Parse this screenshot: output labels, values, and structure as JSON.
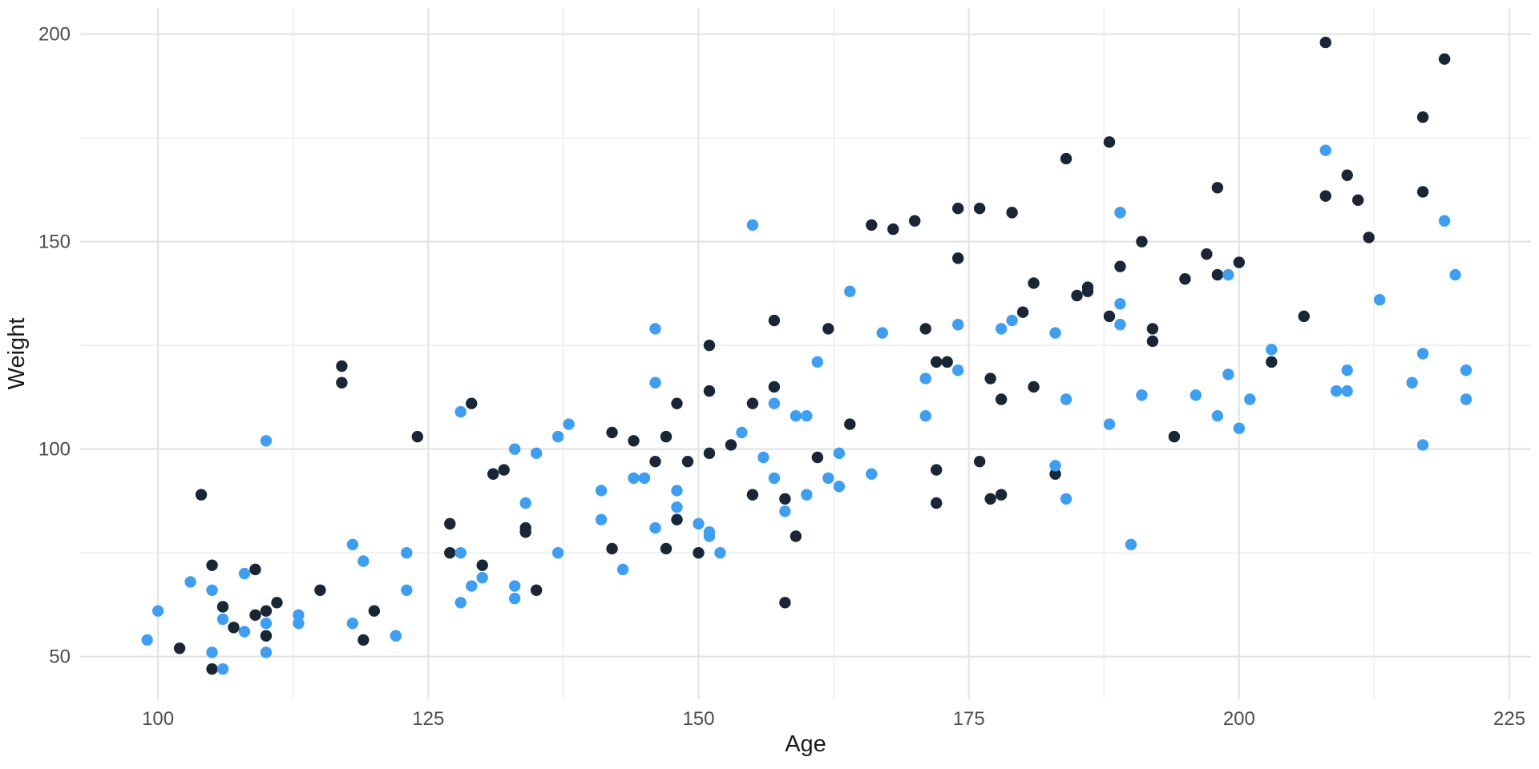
{
  "figure": {
    "title": "",
    "xlabel": "Age",
    "ylabel": "Weight"
  },
  "chart_data": {
    "type": "scatter",
    "title": "",
    "xlabel": "Age",
    "ylabel": "Weight",
    "xlim": [
      92.8,
      227.0
    ],
    "ylim": [
      39.7,
      206.3
    ],
    "x_ticks": [
      100,
      125,
      150,
      175,
      200,
      225
    ],
    "y_ticks": [
      50,
      100,
      150,
      200
    ],
    "x_minor_ticks": [
      112.5,
      137.5,
      162.5,
      187.5,
      212.5
    ],
    "y_minor_ticks": [
      75,
      125,
      175
    ],
    "grid": true,
    "legend": "none",
    "point_radius": 7.2,
    "colors": {
      "dark": "#182635",
      "blue": "#3F9EF0",
      "grid_major": "#E4E4E4",
      "grid_minor": "#EFEFEF",
      "tick_text": "#4D4D4D",
      "axis_title_text": "#1A1A1A",
      "background": "#FFFFFF"
    },
    "series": [
      {
        "name": "navy",
        "color_key": "dark",
        "points": [
          [
            102,
            52
          ],
          [
            104,
            89
          ],
          [
            105,
            72
          ],
          [
            105,
            47
          ],
          [
            106,
            62
          ],
          [
            107,
            57
          ],
          [
            109,
            71
          ],
          [
            109,
            60
          ],
          [
            110,
            61
          ],
          [
            110,
            55
          ],
          [
            111,
            63
          ],
          [
            115,
            66
          ],
          [
            117,
            120
          ],
          [
            117,
            116
          ],
          [
            119,
            54
          ],
          [
            120,
            61
          ],
          [
            124,
            103
          ],
          [
            127,
            82
          ],
          [
            127,
            75
          ],
          [
            129,
            111
          ],
          [
            130,
            72
          ],
          [
            131,
            94
          ],
          [
            132,
            95
          ],
          [
            134,
            81
          ],
          [
            134,
            80
          ],
          [
            135,
            66
          ],
          [
            142,
            104
          ],
          [
            142,
            76
          ],
          [
            144,
            102
          ],
          [
            146,
            97
          ],
          [
            147,
            103
          ],
          [
            147,
            76
          ],
          [
            148,
            111
          ],
          [
            148,
            83
          ],
          [
            149,
            97
          ],
          [
            150,
            75
          ],
          [
            151,
            125
          ],
          [
            151,
            114
          ],
          [
            151,
            99
          ],
          [
            153,
            101
          ],
          [
            155,
            111
          ],
          [
            155,
            89
          ],
          [
            157,
            131
          ],
          [
            157,
            115
          ],
          [
            158,
            88
          ],
          [
            158,
            63
          ],
          [
            159,
            79
          ],
          [
            161,
            98
          ],
          [
            162,
            129
          ],
          [
            164,
            106
          ],
          [
            166,
            154
          ],
          [
            168,
            153
          ],
          [
            170,
            155
          ],
          [
            171,
            129
          ],
          [
            172,
            121
          ],
          [
            172,
            95
          ],
          [
            172,
            87
          ],
          [
            173,
            121
          ],
          [
            174,
            158
          ],
          [
            174,
            146
          ],
          [
            176,
            158
          ],
          [
            176,
            97
          ],
          [
            177,
            117
          ],
          [
            177,
            88
          ],
          [
            178,
            112
          ],
          [
            178,
            89
          ],
          [
            179,
            157
          ],
          [
            180,
            133
          ],
          [
            181,
            140
          ],
          [
            181,
            115
          ],
          [
            183,
            94
          ],
          [
            184,
            170
          ],
          [
            185,
            137
          ],
          [
            186,
            139
          ],
          [
            186,
            138
          ],
          [
            188,
            174
          ],
          [
            188,
            132
          ],
          [
            189,
            144
          ],
          [
            191,
            150
          ],
          [
            192,
            129
          ],
          [
            192,
            126
          ],
          [
            194,
            103
          ],
          [
            195,
            141
          ],
          [
            197,
            147
          ],
          [
            198,
            163
          ],
          [
            198,
            142
          ],
          [
            200,
            145
          ],
          [
            203,
            121
          ],
          [
            206,
            132
          ],
          [
            208,
            198
          ],
          [
            208,
            161
          ],
          [
            210,
            166
          ],
          [
            211,
            160
          ],
          [
            212,
            151
          ],
          [
            217,
            180
          ],
          [
            217,
            162
          ],
          [
            219,
            194
          ]
        ]
      },
      {
        "name": "light-blue",
        "color_key": "blue",
        "points": [
          [
            99,
            54
          ],
          [
            100,
            61
          ],
          [
            103,
            68
          ],
          [
            105,
            66
          ],
          [
            105,
            51
          ],
          [
            106,
            59
          ],
          [
            106,
            47
          ],
          [
            108,
            70
          ],
          [
            108,
            56
          ],
          [
            110,
            58
          ],
          [
            110,
            51
          ],
          [
            110,
            102
          ],
          [
            113,
            60
          ],
          [
            113,
            58
          ],
          [
            118,
            77
          ],
          [
            118,
            58
          ],
          [
            119,
            73
          ],
          [
            122,
            55
          ],
          [
            123,
            75
          ],
          [
            123,
            66
          ],
          [
            128,
            109
          ],
          [
            128,
            75
          ],
          [
            128,
            63
          ],
          [
            129,
            67
          ],
          [
            130,
            69
          ],
          [
            133,
            100
          ],
          [
            133,
            67
          ],
          [
            133,
            64
          ],
          [
            134,
            87
          ],
          [
            135,
            99
          ],
          [
            137,
            103
          ],
          [
            137,
            75
          ],
          [
            138,
            106
          ],
          [
            141,
            90
          ],
          [
            141,
            83
          ],
          [
            143,
            71
          ],
          [
            144,
            93
          ],
          [
            145,
            93
          ],
          [
            146,
            129
          ],
          [
            146,
            116
          ],
          [
            146,
            81
          ],
          [
            148,
            90
          ],
          [
            148,
            86
          ],
          [
            150,
            82
          ],
          [
            151,
            80
          ],
          [
            151,
            79
          ],
          [
            152,
            75
          ],
          [
            154,
            104
          ],
          [
            155,
            154
          ],
          [
            156,
            98
          ],
          [
            157,
            111
          ],
          [
            157,
            93
          ],
          [
            158,
            85
          ],
          [
            159,
            108
          ],
          [
            160,
            108
          ],
          [
            160,
            89
          ],
          [
            161,
            121
          ],
          [
            162,
            93
          ],
          [
            163,
            99
          ],
          [
            163,
            91
          ],
          [
            164,
            138
          ],
          [
            166,
            94
          ],
          [
            167,
            128
          ],
          [
            171,
            117
          ],
          [
            171,
            108
          ],
          [
            174,
            130
          ],
          [
            174,
            119
          ],
          [
            178,
            129
          ],
          [
            179,
            131
          ],
          [
            183,
            128
          ],
          [
            183,
            96
          ],
          [
            184,
            112
          ],
          [
            184,
            88
          ],
          [
            188,
            106
          ],
          [
            189,
            157
          ],
          [
            189,
            135
          ],
          [
            189,
            130
          ],
          [
            190,
            77
          ],
          [
            191,
            113
          ],
          [
            196,
            113
          ],
          [
            198,
            108
          ],
          [
            199,
            142
          ],
          [
            199,
            118
          ],
          [
            200,
            105
          ],
          [
            201,
            112
          ],
          [
            203,
            124
          ],
          [
            208,
            172
          ],
          [
            209,
            114
          ],
          [
            210,
            114
          ],
          [
            210,
            119
          ],
          [
            213,
            136
          ],
          [
            216,
            116
          ],
          [
            217,
            123
          ],
          [
            217,
            101
          ],
          [
            219,
            155
          ],
          [
            220,
            142
          ],
          [
            221,
            119
          ],
          [
            221,
            112
          ]
        ]
      }
    ]
  }
}
